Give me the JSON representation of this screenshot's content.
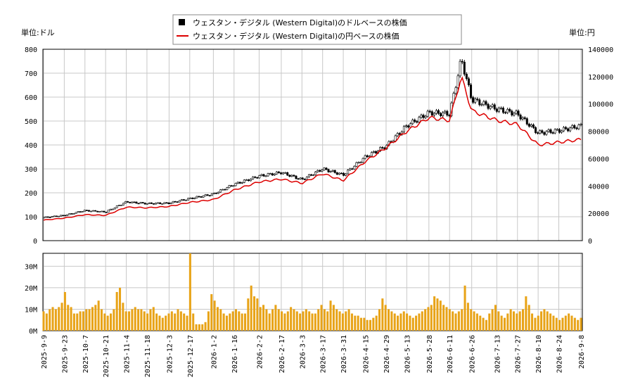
{
  "chart_data": {
    "type": "candlestick-with-volume",
    "legend": {
      "placement": "top-center",
      "items": [
        {
          "label": "ウェスタン・デジタル (Western Digital)のドルベースの株価",
          "marker": "square",
          "color": "#000000"
        },
        {
          "label": "ウェスタン・デジタル (Western Digital)の円ベースの株価",
          "marker": "line",
          "color": "#dd0000"
        }
      ]
    },
    "left_unit_label": "単位:ドル",
    "right_unit_label": "単位:円",
    "price_axis_left": {
      "min": 0,
      "max": 800,
      "ticks": [
        0,
        100,
        200,
        300,
        400,
        500,
        600,
        700,
        800
      ]
    },
    "price_axis_right": {
      "min": 0,
      "max": 140000,
      "ticks": [
        0,
        20000,
        40000,
        60000,
        80000,
        100000,
        120000,
        140000
      ]
    },
    "volume_axis": {
      "min": 0,
      "max": 36,
      "unit": "M",
      "ticks": [
        0,
        10,
        20,
        30
      ],
      "tick_labels": [
        "0M",
        "10M",
        "20M",
        "30M"
      ]
    },
    "x_labels": [
      "2025-9-9",
      "2025-9-23",
      "2025-10-7",
      "2025-10-21",
      "2025-11-4",
      "2025-11-18",
      "2025-12-3",
      "2025-12-17",
      "2026-1-2",
      "2026-1-16",
      "2026-2-2",
      "2026-2-17",
      "2026-3-3",
      "2026-3-17",
      "2026-3-31",
      "2026-4-15",
      "2026-4-29",
      "2026-5-13",
      "2026-5-28",
      "2026-6-11",
      "2026-6-26",
      "2026-7-13",
      "2026-7-27",
      "2026-8-10",
      "2026-8-24",
      "2026-9-8"
    ],
    "grid": true,
    "colors": {
      "candle": "#000000",
      "yen_line": "#dd0000",
      "volume_bar": "#e8a317",
      "grid": "#c8c8c8"
    },
    "usd_close_anchors": [
      {
        "date": "2025-9-9",
        "close": 97
      },
      {
        "date": "2025-9-23",
        "close": 106
      },
      {
        "date": "2025-10-7",
        "close": 126
      },
      {
        "date": "2025-10-21",
        "close": 120
      },
      {
        "date": "2025-11-4",
        "close": 162
      },
      {
        "date": "2025-11-18",
        "close": 155
      },
      {
        "date": "2025-12-3",
        "close": 157
      },
      {
        "date": "2025-12-17",
        "close": 176
      },
      {
        "date": "2026-1-2",
        "close": 195
      },
      {
        "date": "2026-1-16",
        "close": 235
      },
      {
        "date": "2026-2-2",
        "close": 270
      },
      {
        "date": "2026-2-17",
        "close": 285
      },
      {
        "date": "2026-3-3",
        "close": 255
      },
      {
        "date": "2026-3-17",
        "close": 300
      },
      {
        "date": "2026-3-31",
        "close": 275
      },
      {
        "date": "2026-4-15",
        "close": 350
      },
      {
        "date": "2026-4-29",
        "close": 395
      },
      {
        "date": "2026-5-13",
        "close": 480
      },
      {
        "date": "2026-5-28",
        "close": 535
      },
      {
        "date": "2026-6-11",
        "close": 530
      },
      {
        "date": "2026-6-19",
        "close": 760
      },
      {
        "date": "2026-6-26",
        "close": 590
      },
      {
        "date": "2026-7-13",
        "close": 550
      },
      {
        "date": "2026-7-27",
        "close": 530
      },
      {
        "date": "2026-8-10",
        "close": 450
      },
      {
        "date": "2026-8-24",
        "close": 460
      },
      {
        "date": "2026-9-8",
        "close": 480
      }
    ],
    "jpy_close_anchors": [
      {
        "date": "2025-9-9",
        "close": 15000
      },
      {
        "date": "2025-9-23",
        "close": 16500
      },
      {
        "date": "2025-10-7",
        "close": 19000
      },
      {
        "date": "2025-10-21",
        "close": 18500
      },
      {
        "date": "2025-11-4",
        "close": 24500
      },
      {
        "date": "2025-11-18",
        "close": 24000
      },
      {
        "date": "2025-12-3",
        "close": 25000
      },
      {
        "date": "2025-12-17",
        "close": 28000
      },
      {
        "date": "2026-1-2",
        "close": 30000
      },
      {
        "date": "2026-1-16",
        "close": 37000
      },
      {
        "date": "2026-2-2",
        "close": 43000
      },
      {
        "date": "2026-2-17",
        "close": 45000
      },
      {
        "date": "2026-3-3",
        "close": 42000
      },
      {
        "date": "2026-3-17",
        "close": 49000
      },
      {
        "date": "2026-3-31",
        "close": 44000
      },
      {
        "date": "2026-4-15",
        "close": 58000
      },
      {
        "date": "2026-4-29",
        "close": 68000
      },
      {
        "date": "2026-5-13",
        "close": 80000
      },
      {
        "date": "2026-5-28",
        "close": 90000
      },
      {
        "date": "2026-6-11",
        "close": 88000
      },
      {
        "date": "2026-6-19",
        "close": 120000
      },
      {
        "date": "2026-6-26",
        "close": 95000
      },
      {
        "date": "2026-7-13",
        "close": 88000
      },
      {
        "date": "2026-7-27",
        "close": 85000
      },
      {
        "date": "2026-8-10",
        "close": 70000
      },
      {
        "date": "2026-8-24",
        "close": 72000
      },
      {
        "date": "2026-9-8",
        "close": 74000
      }
    ],
    "volume_values_M": [
      9,
      8,
      10,
      11,
      10,
      11,
      13,
      18,
      12,
      11,
      8,
      8,
      9,
      9,
      10,
      10,
      11,
      12,
      14,
      10,
      8,
      7,
      8,
      10,
      18,
      20,
      13,
      9,
      9,
      10,
      11,
      10,
      10,
      9,
      8,
      10,
      11,
      8,
      7,
      6,
      7,
      8,
      9,
      8,
      10,
      9,
      8,
      7,
      36,
      8,
      3,
      3,
      3,
      4,
      9,
      17,
      14,
      11,
      10,
      8,
      7,
      8,
      9,
      10,
      9,
      8,
      8,
      15,
      21,
      16,
      15,
      11,
      12,
      10,
      8,
      10,
      12,
      10,
      9,
      8,
      9,
      11,
      10,
      9,
      8,
      9,
      10,
      9,
      8,
      8,
      10,
      12,
      10,
      9,
      14,
      12,
      10,
      9,
      8,
      9,
      10,
      8,
      7,
      7,
      6,
      6,
      5,
      5,
      6,
      7,
      10,
      15,
      12,
      10,
      9,
      8,
      7,
      8,
      9,
      8,
      7,
      6,
      7,
      8,
      9,
      10,
      11,
      12,
      16,
      15,
      14,
      12,
      11,
      10,
      9,
      8,
      9,
      10,
      21,
      13,
      10,
      9,
      8,
      7,
      6,
      5,
      8,
      10,
      12,
      9,
      7,
      6,
      8,
      10,
      9,
      8,
      9,
      10,
      16,
      12,
      8,
      6,
      7,
      9,
      10,
      9,
      8,
      7,
      6,
      5,
      6,
      7,
      8,
      7,
      6,
      5,
      6
    ]
  }
}
